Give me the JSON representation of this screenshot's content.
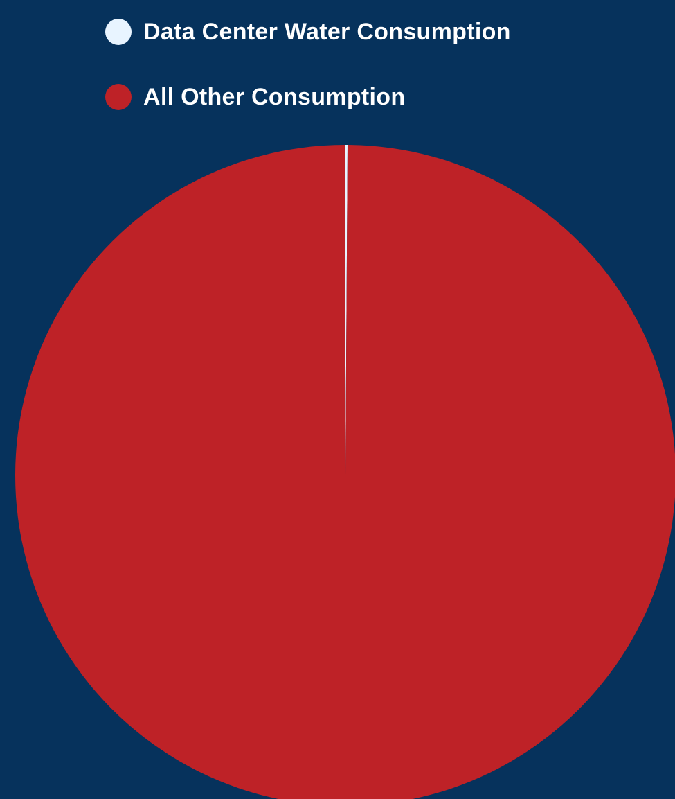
{
  "colors": {
    "background": "#06325c"
  },
  "chart_data": {
    "type": "pie",
    "title": "",
    "legend_position": "top-left",
    "slices": [
      {
        "label": "Data Center Water Consumption",
        "value": 0.1,
        "color": "#e8f4ff"
      },
      {
        "label": "All Other Consumption",
        "value": 99.9,
        "color": "#be2227"
      }
    ]
  }
}
